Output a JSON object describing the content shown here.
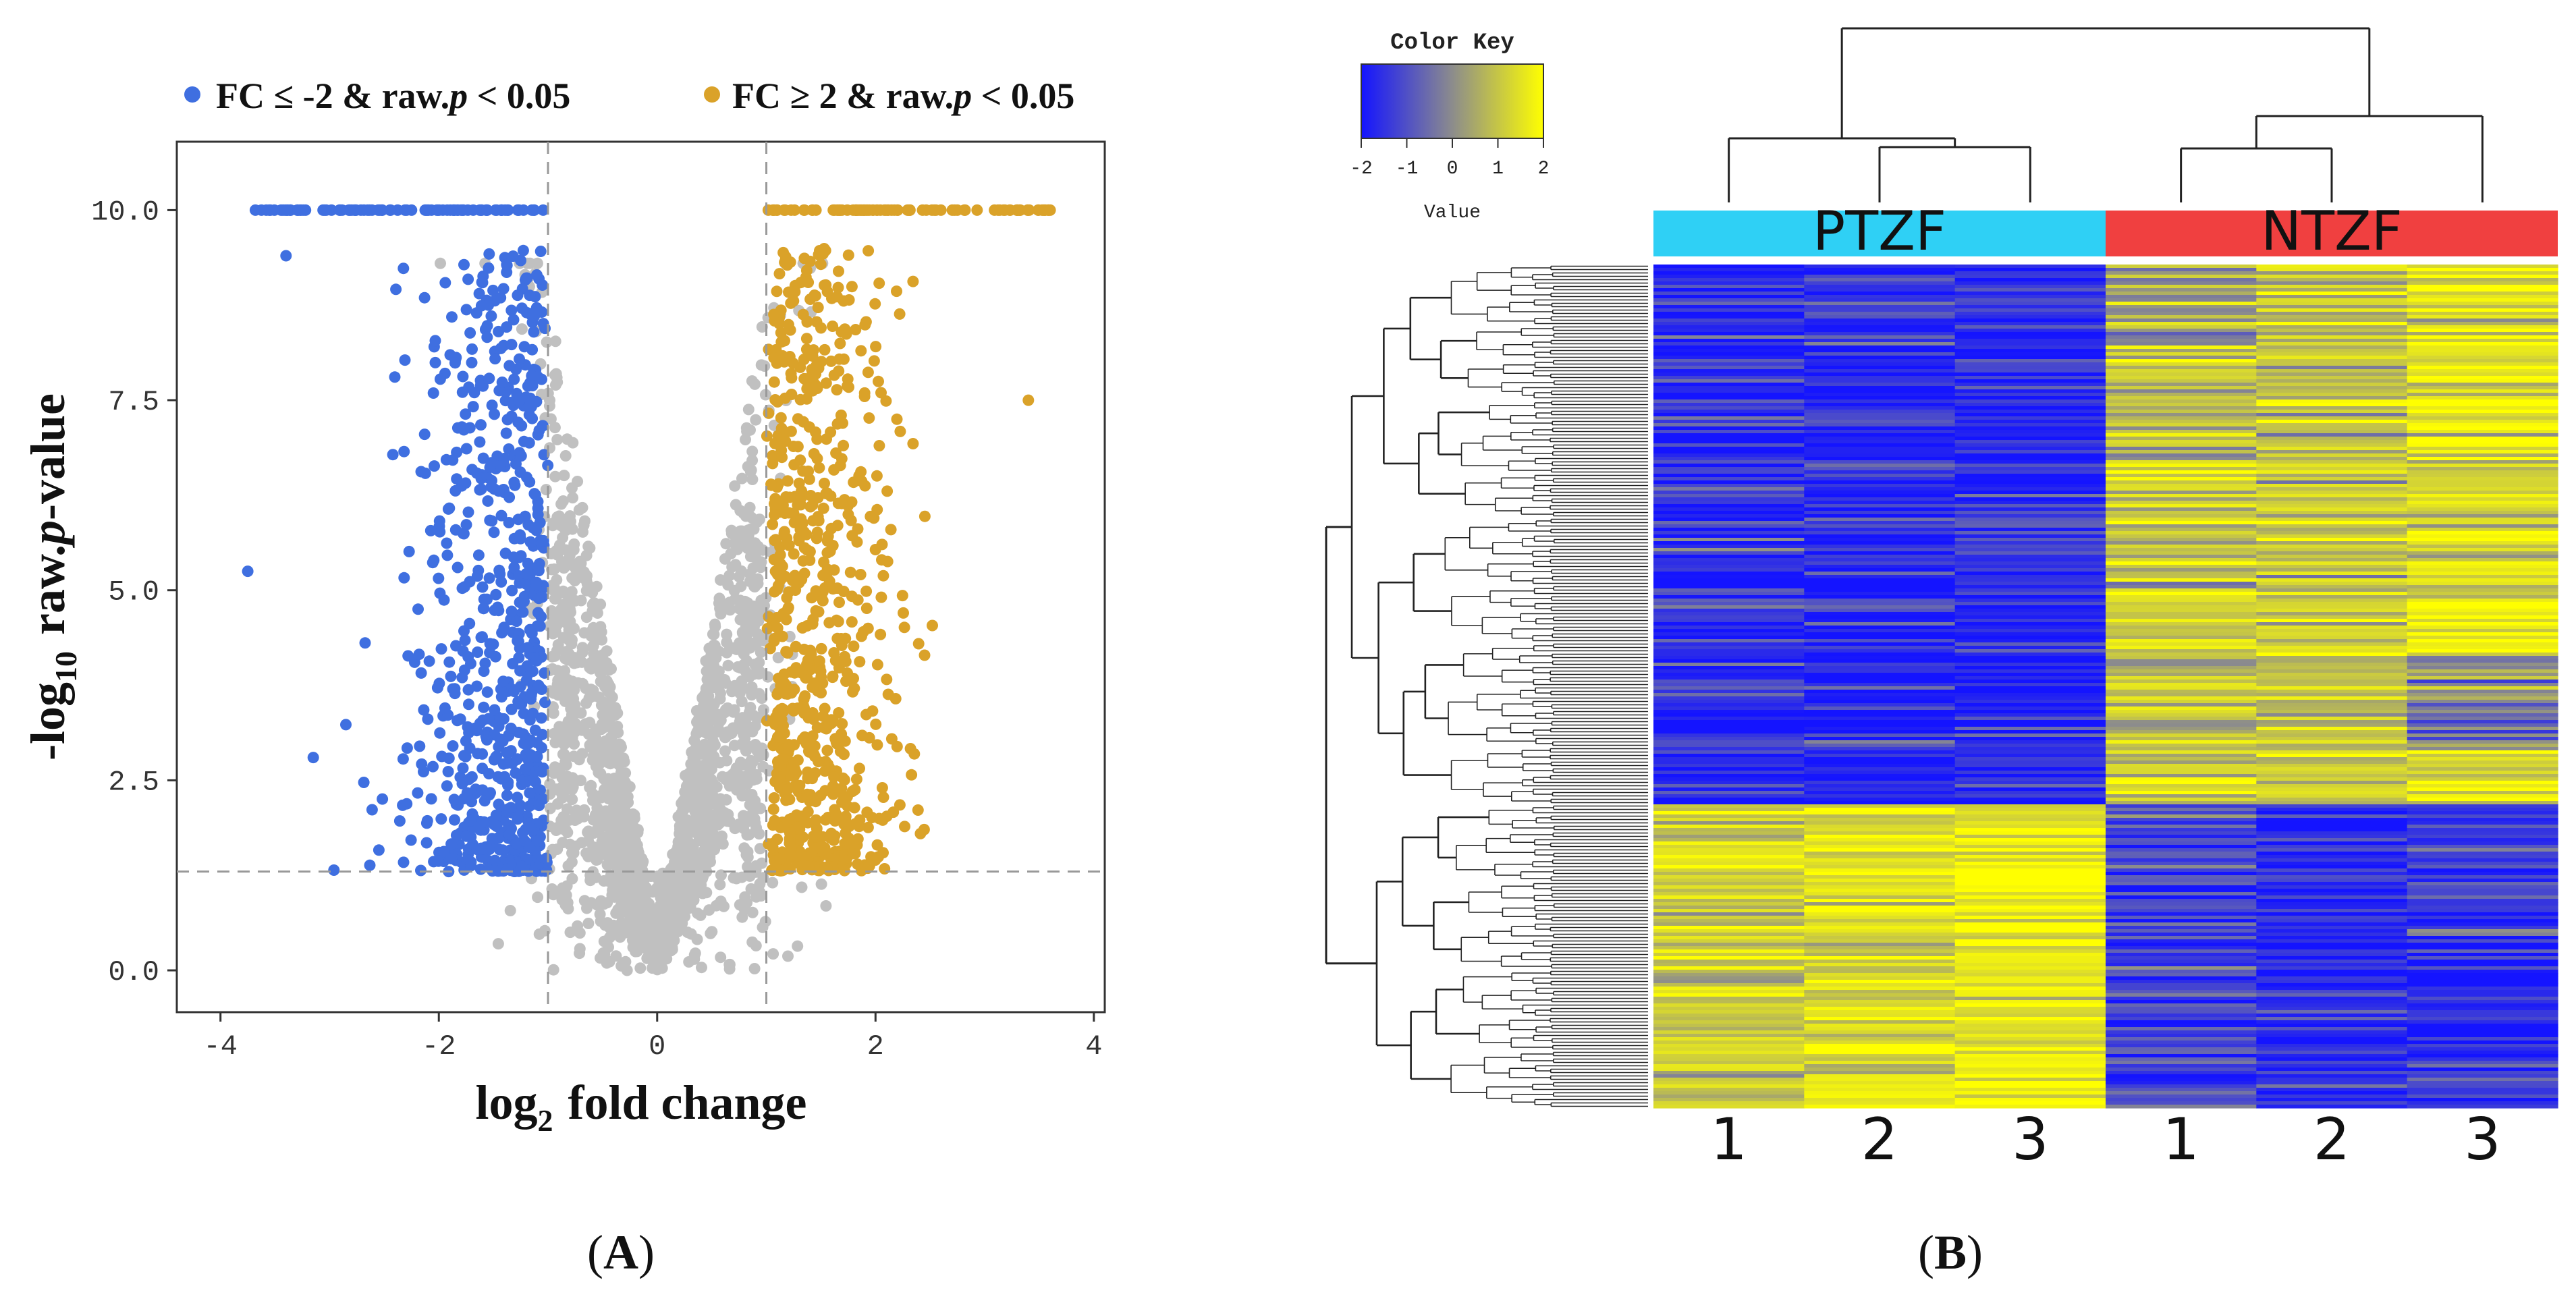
{
  "colors": {
    "down": "#3f6fe0",
    "up": "#daa229",
    "ns": "#c0c0c0",
    "ptzf_bar": "#2fd0f5",
    "ntzf_bar": "#f04040",
    "heat_low": "#1414ff",
    "heat_mid": "#8c8c8c",
    "heat_high": "#ffff00",
    "axis": "#333333"
  },
  "panels": {
    "a_label": "A",
    "b_label": "B"
  },
  "chart_data": [
    {
      "type": "scatter",
      "name": "volcano-plot",
      "title": "",
      "xlabel_main": "log",
      "xlabel_sub": "2",
      "xlabel_rest": "fold change",
      "ylabel_pre": "-log",
      "ylabel_sub": "10",
      "ylabel_post": "raw.",
      "ylabel_ital": "p",
      "ylabel_end": "-value",
      "xlim": [
        -4.4,
        4.1
      ],
      "ylim": [
        -0.55,
        10.9
      ],
      "xticks": [
        -4,
        -2,
        0,
        2,
        4
      ],
      "xtick_labels": [
        "-4",
        "-2",
        "0",
        "2",
        "4"
      ],
      "yticks": [
        0,
        2.5,
        5,
        7.5,
        10
      ],
      "ytick_labels": [
        "0.0",
        "2.5",
        "5.0",
        "7.5",
        "10.0"
      ],
      "thresholds": {
        "x": [
          -1,
          1
        ],
        "y": 1.3
      },
      "legend_position": "top",
      "legend": [
        {
          "name": "down",
          "label_a": "FC ≤ -2 & raw.",
          "label_ital": "p",
          "label_b": " < 0.05",
          "color": "#3f6fe0"
        },
        {
          "name": "up",
          "label_a": "FC ≥ 2 & raw.",
          "label_ital": "p",
          "label_b": " < 0.05",
          "color": "#daa229"
        }
      ],
      "series": [
        {
          "name": "not-significant",
          "color": "#c0c0c0",
          "description": "V-shaped cloud, |log2FC| < 1 or p >= 0.05",
          "cap": 10.0
        },
        {
          "name": "down-regulated",
          "color": "#3f6fe0",
          "x_range": [
            -3.75,
            -1.0
          ],
          "y_range": [
            1.3,
            10.0
          ],
          "saturated_at": 10.0,
          "outliers": [
            [
              -3.75,
              5.25
            ],
            [
              -3.15,
              2.8
            ],
            [
              -3.4,
              9.4
            ]
          ]
        },
        {
          "name": "up-regulated",
          "color": "#daa229",
          "x_range": [
            1.0,
            3.6
          ],
          "y_range": [
            1.3,
            10.0
          ],
          "saturated_at": 10.0,
          "outliers": [
            [
              3.4,
              7.5
            ],
            [
              3.6,
              10.0
            ]
          ]
        }
      ]
    },
    {
      "type": "heatmap",
      "name": "expression-heatmap",
      "color_key": {
        "title": "Color Key",
        "label": "Value",
        "ticks": [
          -2,
          -1,
          0,
          1,
          2
        ],
        "tick_labels": [
          "-2",
          "-1",
          "0",
          "1",
          "2"
        ],
        "range": [
          -2,
          2
        ]
      },
      "groups": [
        {
          "name": "PTZF",
          "color": "#2fd0f5",
          "columns": [
            0,
            1,
            2
          ]
        },
        {
          "name": "NTZF",
          "color": "#f04040",
          "columns": [
            3,
            4,
            5
          ]
        }
      ],
      "column_labels": [
        "1",
        "2",
        "3",
        "1",
        "2",
        "3"
      ],
      "row_clusters": [
        {
          "fraction": 0.64,
          "means": [
            -1.6,
            -1.6,
            -1.6,
            0.9,
            1.0,
            1.5
          ]
        },
        {
          "fraction": 0.36,
          "means": [
            1.2,
            1.4,
            1.7,
            -1.3,
            -1.7,
            -1.5
          ]
        }
      ],
      "column_dendrogram": "((PTZF1,(PTZF2,PTZF3)),((NTZF1,NTZF2),NTZF3))"
    }
  ]
}
